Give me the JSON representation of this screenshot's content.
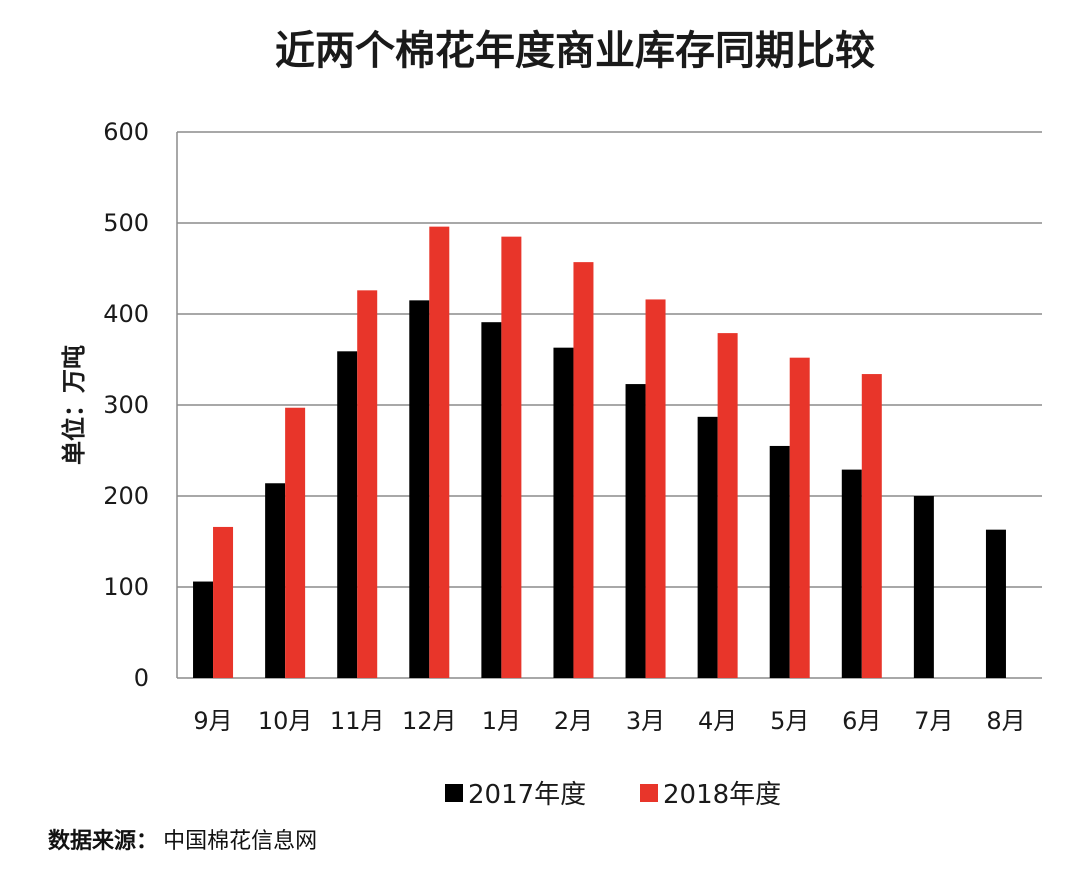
{
  "chart_data": {
    "type": "bar",
    "title": "近两个棉花年度商业库存同期比较",
    "xlabel": "",
    "ylabel": "单位：万吨",
    "ylim": [
      0,
      600
    ],
    "yticks": [
      0,
      100,
      200,
      300,
      400,
      500,
      600
    ],
    "grid": true,
    "legend_position": "bottom",
    "categories": [
      "9月",
      "10月",
      "11月",
      "12月",
      "1月",
      "2月",
      "3月",
      "4月",
      "5月",
      "6月",
      "7月",
      "8月"
    ],
    "series": [
      {
        "name": "2017年度",
        "color": "#000000",
        "values": [
          106,
          214,
          359,
          415,
          391,
          363,
          323,
          287,
          255,
          229,
          200,
          163
        ]
      },
      {
        "name": "2018年度",
        "color": "#e8352a",
        "values": [
          166,
          297,
          426,
          496,
          485,
          457,
          416,
          379,
          352,
          334,
          null,
          null
        ]
      }
    ]
  },
  "source": {
    "label": "数据来源：",
    "value": "中国棉花信息网"
  }
}
